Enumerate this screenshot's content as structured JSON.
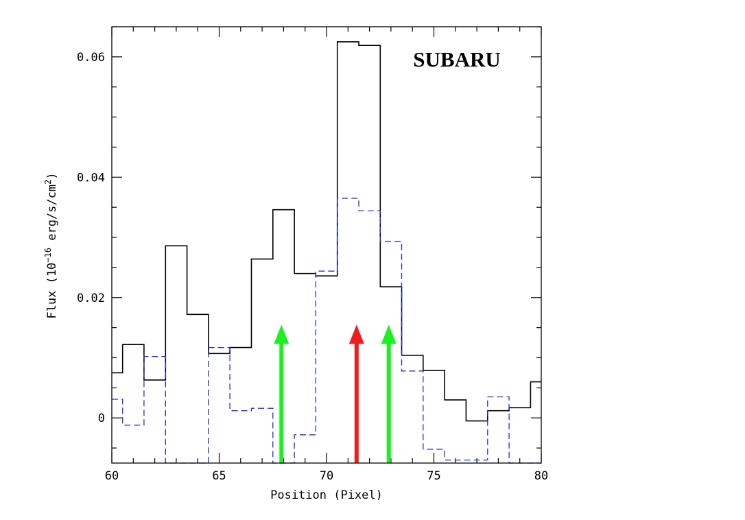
{
  "chart_data": {
    "type": "line",
    "title": "",
    "panel_label": "SUBARU",
    "xlabel": "Position (Pixel)",
    "ylabel": "Flux (10",
    "ylabel_exp": "−16",
    "ylabel_rest": " erg/s/cm",
    "ylabel_sq": "2",
    "ylabel_close": ")",
    "xlim": [
      60,
      80
    ],
    "ylim": [
      -0.0075,
      0.065
    ],
    "x_ticks": [
      60,
      65,
      70,
      75,
      80
    ],
    "x_tick_labels": [
      "60",
      "65",
      "70",
      "75",
      "80"
    ],
    "y_ticks": [
      0,
      0.02,
      0.04,
      0.06
    ],
    "y_tick_labels": [
      "0",
      "0.02",
      "0.04",
      "0.06"
    ],
    "grid": false,
    "series": [
      {
        "style": "solid-step",
        "color": "#000000",
        "x": [
          60,
          61,
          62,
          63,
          64,
          65,
          66,
          67,
          68,
          69,
          70,
          71,
          72,
          73,
          74,
          75,
          76,
          77,
          78,
          79,
          80
        ],
        "values": [
          0.0075,
          0.0122,
          0.0063,
          0.0286,
          0.0172,
          0.0107,
          0.0117,
          0.0264,
          0.0346,
          0.024,
          0.0236,
          0.0625,
          0.0619,
          0.0218,
          0.0104,
          0.0079,
          0.003,
          -0.0005,
          0.0012,
          0.0017,
          0.006
        ]
      },
      {
        "style": "dashed-step",
        "color": "#1f2fc9",
        "x": [
          60,
          61,
          62,
          63,
          64,
          65,
          66,
          67,
          68,
          69,
          70,
          71,
          72,
          73,
          74,
          75,
          76,
          77,
          78,
          79,
          80
        ],
        "values": [
          0.0031,
          -0.0012,
          0.0102,
          -0.012,
          -0.012,
          0.0117,
          0.0012,
          0.0016,
          -0.012,
          -0.0028,
          0.0244,
          0.0365,
          0.0344,
          0.0293,
          0.0078,
          -0.0052,
          -0.007,
          -0.007,
          0.0035,
          -0.012,
          -0.012
        ]
      }
    ],
    "annotations": [
      {
        "type": "arrow",
        "x": 67.9,
        "y_from": -0.0075,
        "y_to": 0.0155,
        "color": "#19f21e"
      },
      {
        "type": "arrow",
        "x": 71.4,
        "y_from": -0.0075,
        "y_to": 0.0155,
        "color": "#f21c1c"
      },
      {
        "type": "arrow",
        "x": 72.9,
        "y_from": -0.0075,
        "y_to": 0.0155,
        "color": "#19f21e"
      }
    ]
  }
}
